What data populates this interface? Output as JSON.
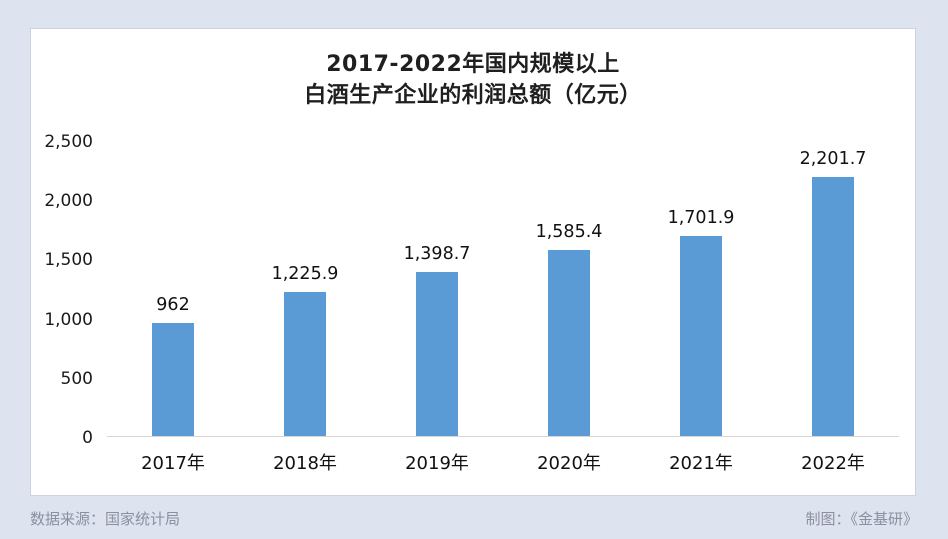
{
  "page": {
    "background_color": "#dde3ef",
    "footer": {
      "source": "数据来源：国家统计局",
      "credit": "制图：《金基研》"
    }
  },
  "chart_data": {
    "type": "bar",
    "title": "2017-2022年国内规模以上白酒生产企业的利润总额（亿元）",
    "title_lines": [
      "2017-2022年国内规模以上",
      "白酒生产企业的利润总额（亿元）"
    ],
    "categories": [
      "2017年",
      "2018年",
      "2019年",
      "2020年",
      "2021年",
      "2022年"
    ],
    "values": [
      962,
      1225.9,
      1398.7,
      1585.4,
      1701.9,
      2201.7
    ],
    "value_labels": [
      "962",
      "1,225.9",
      "1,398.7",
      "1,585.4",
      "1,701.9",
      "2,201.7"
    ],
    "xlabel": "",
    "ylabel": "",
    "ylim": [
      0,
      2500
    ],
    "y_ticks": [
      0,
      500,
      1000,
      1500,
      2000,
      2500
    ],
    "y_tick_labels_top_to_bottom": [
      "2,500",
      "2,000",
      "1,500",
      "1,000",
      "500",
      "0"
    ],
    "bar_color": "#5b9bd5",
    "grid": false,
    "legend": "none"
  }
}
